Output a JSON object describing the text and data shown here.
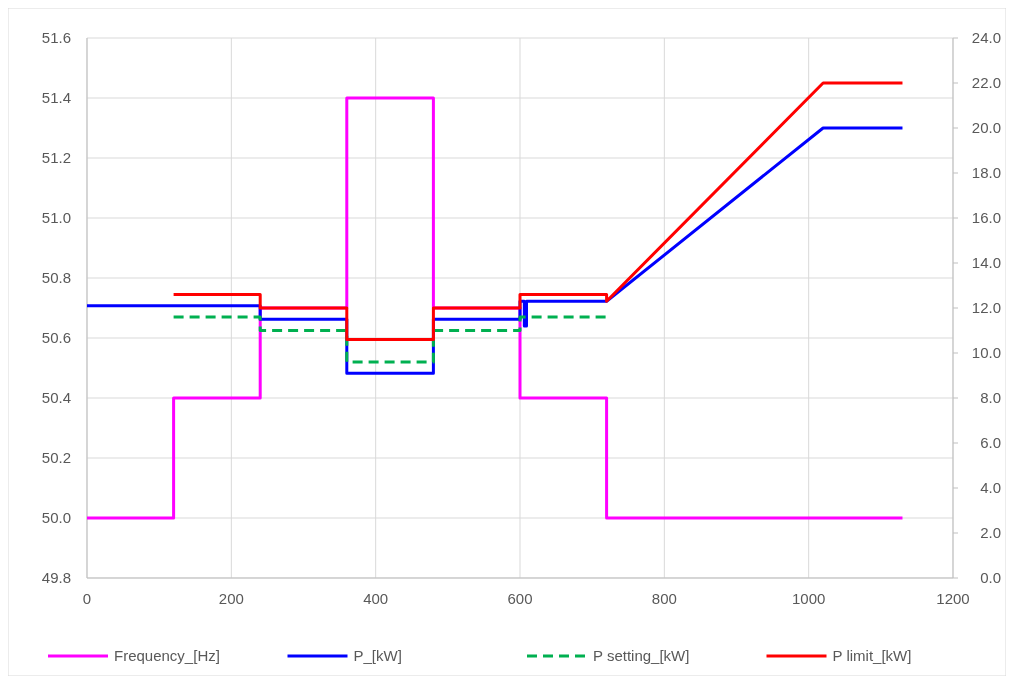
{
  "chart_data": {
    "type": "line",
    "xlim": [
      0,
      1200
    ],
    "xticks": [
      0,
      200,
      400,
      600,
      800,
      1000,
      1200
    ],
    "ylim": [
      49.8,
      51.6
    ],
    "yticks": [
      49.8,
      {
        "value": 50,
        "label": "50.0"
      },
      50.2,
      50.4,
      50.6,
      50.8,
      {
        "value": 51,
        "label": "51.0"
      },
      51.2,
      51.4,
      51.6
    ],
    "y2lim": [
      0,
      24
    ],
    "y2ticks": [
      {
        "value": 0,
        "label": "0.0"
      },
      {
        "value": 2,
        "label": "2.0"
      },
      {
        "value": 4,
        "label": "4.0"
      },
      {
        "value": 6,
        "label": "6.0"
      },
      {
        "value": 8,
        "label": "8.0"
      },
      {
        "value": 10,
        "label": "10.0"
      },
      {
        "value": 12,
        "label": "12.0"
      },
      {
        "value": 14,
        "label": "14.0"
      },
      {
        "value": 16,
        "label": "16.0"
      },
      {
        "value": 18,
        "label": "18.0"
      },
      {
        "value": 20,
        "label": "20.0"
      },
      {
        "value": 22,
        "label": "22.0"
      },
      {
        "value": 24,
        "label": "24.0"
      }
    ],
    "grid": true,
    "legend": "bottom",
    "series": [
      {
        "name": "Frequency_[Hz]",
        "color": "#ff00ff",
        "x": [
          0,
          120,
          120,
          240,
          240,
          360,
          360,
          480,
          480,
          600,
          600,
          720,
          720,
          1130
        ],
        "values": [
          50.0,
          50.0,
          50.4,
          50.4,
          50.7,
          50.7,
          51.4,
          51.4,
          50.7,
          50.7,
          50.4,
          50.4,
          50.0,
          50.0
        ]
      },
      {
        "name": "P_[kW]",
        "color": "#0000ff",
        "axis": "y2",
        "x": [
          0,
          240,
          240,
          360,
          360,
          480,
          480,
          600,
          600,
          606,
          606,
          609,
          609,
          720,
          1020,
          1130
        ],
        "values": [
          12.1,
          12.1,
          11.5,
          11.5,
          9.1,
          9.1,
          11.5,
          11.5,
          12.3,
          12.3,
          11.2,
          11.2,
          12.3,
          12.3,
          20.0,
          20.0
        ]
      },
      {
        "name": "P setting_[kW]",
        "color": "#00b050",
        "axis": "y2",
        "line_style": "dashed",
        "x": [
          120,
          240,
          240,
          360,
          360,
          480,
          480,
          600,
          600,
          720
        ],
        "values": [
          11.6,
          11.6,
          11.0,
          11.0,
          9.6,
          9.6,
          11.0,
          11.0,
          11.6,
          11.6
        ]
      },
      {
        "name": "P limit_[kW]",
        "color": "#ff0000",
        "axis": "y2",
        "x": [
          120,
          240,
          240,
          360,
          360,
          480,
          480,
          600,
          600,
          720,
          720,
          1020,
          1130
        ],
        "values": [
          12.6,
          12.6,
          12.0,
          12.0,
          10.6,
          10.6,
          12.0,
          12.0,
          12.6,
          12.6,
          12.3,
          22.0,
          22.0
        ]
      }
    ]
  }
}
